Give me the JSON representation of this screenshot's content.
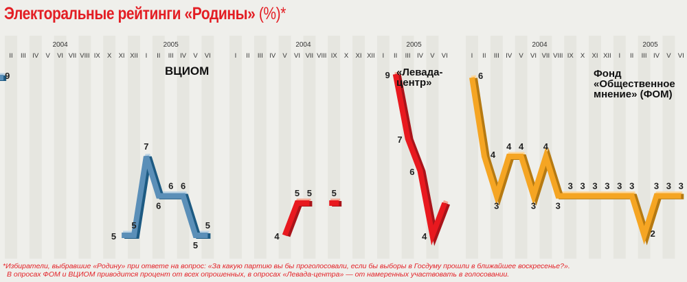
{
  "title": "Электоральные рейтинги «Родины»",
  "title_suffix": "(%)*",
  "footnote_1": "*Избиратели, выбравшие «Родину» при ответе на вопрос: «За какую партию вы бы проголосовали, если бы выборы в Госдуму прошли в ближайшее воскресенье?».",
  "footnote_2": "В опросах ФОМ и ВЦИОМ приводится процент от всех опрошенных, в опросах «Левада-центра» — от намеренных участвовать в голосовании.",
  "chart_data": [
    {
      "type": "line",
      "title": "ВЦИОМ",
      "years": [
        {
          "label": "2004",
          "month_index": 4
        },
        {
          "label": "2005",
          "month_index": 13
        }
      ],
      "months": [
        "II",
        "III",
        "IV",
        "V",
        "VI",
        "VII",
        "VIII",
        "IX",
        "X",
        "XI",
        "XII",
        "I",
        "II",
        "III",
        "IV",
        "V",
        "VI"
      ],
      "points": [
        {
          "i": -1,
          "value": 9,
          "label": "9",
          "pos": "right"
        },
        {
          "i": 9,
          "value": 5,
          "label": "5",
          "pos": "left"
        },
        {
          "i": 10,
          "value": 5,
          "label": "5",
          "pos": "above"
        },
        {
          "i": 11,
          "value": 7,
          "label": "7",
          "pos": "above"
        },
        {
          "i": 12,
          "value": 6,
          "label": "6",
          "pos": "below"
        },
        {
          "i": 13,
          "value": 6,
          "label": "6",
          "pos": "above"
        },
        {
          "i": 14,
          "value": 6,
          "label": "6",
          "pos": "above"
        },
        {
          "i": 15,
          "value": 5,
          "label": "5",
          "pos": "below"
        },
        {
          "i": 16,
          "value": 5,
          "label": "5",
          "pos": "above"
        }
      ],
      "segments": [
        [
          -1,
          -1
        ],
        [
          9,
          16
        ]
      ],
      "colors": {
        "main": "#5b8fb8",
        "dark": "#1d5a82",
        "top": "#bdd3e3"
      }
    },
    {
      "type": "line",
      "title": "«Левада-центр»",
      "years": [
        {
          "label": "2004",
          "month_index": 5.5
        },
        {
          "label": "2005",
          "month_index": 14.5
        }
      ],
      "months": [
        "I",
        "II",
        "III",
        "IV",
        "V",
        "VI",
        "VII",
        "VIII",
        "IX",
        "X",
        "XI",
        "XII",
        "I",
        "II",
        "III",
        "IV",
        "V",
        "VI"
      ],
      "points": [
        {
          "i": 4,
          "value": 4,
          "label": "4",
          "pos": "left"
        },
        {
          "i": 5,
          "value": 5,
          "label": "5",
          "pos": "above"
        },
        {
          "i": 6,
          "value": 5,
          "label": "5",
          "pos": "above"
        },
        {
          "i": 8,
          "value": 5,
          "label": "5",
          "pos": "above"
        },
        {
          "i": 13,
          "value": 9,
          "label": "9",
          "pos": "left"
        },
        {
          "i": 14,
          "value": 7,
          "label": "7",
          "pos": "left"
        },
        {
          "i": 15,
          "value": 6,
          "label": "6",
          "pos": "left"
        },
        {
          "i": 16,
          "value": 4,
          "label": "4",
          "pos": "left"
        },
        {
          "i": 17,
          "value": 5,
          "label": "",
          "pos": "above"
        }
      ],
      "segments": [
        [
          4,
          6
        ],
        [
          8,
          8
        ],
        [
          13,
          17
        ]
      ],
      "colors": {
        "main": "#e8191f",
        "dark": "#a9141a",
        "top": "#f5a592"
      }
    },
    {
      "type": "line",
      "title": "Фонд «Общественное мнение» (ФОМ)",
      "years": [
        {
          "label": "2004",
          "month_index": 5.5
        },
        {
          "label": "2005",
          "month_index": 14.5
        }
      ],
      "months": [
        "I",
        "II",
        "III",
        "IV",
        "V",
        "VI",
        "VII",
        "VIII",
        "IX",
        "X",
        "XI",
        "XII",
        "I",
        "II",
        "III",
        "IV",
        "V",
        "VI"
      ],
      "points": [
        {
          "i": 0,
          "value": 6,
          "label": "6",
          "pos": "right"
        },
        {
          "i": 1,
          "value": 4,
          "label": "4",
          "pos": "right"
        },
        {
          "i": 2,
          "value": 3,
          "label": "3",
          "pos": "below"
        },
        {
          "i": 3,
          "value": 4,
          "label": "4",
          "pos": "above"
        },
        {
          "i": 4,
          "value": 4,
          "label": "4",
          "pos": "above"
        },
        {
          "i": 5,
          "value": 3,
          "label": "3",
          "pos": "below"
        },
        {
          "i": 6,
          "value": 4,
          "label": "4",
          "pos": "above"
        },
        {
          "i": 7,
          "value": 3,
          "label": "3",
          "pos": "below"
        },
        {
          "i": 8,
          "value": 3,
          "label": "3",
          "pos": "above"
        },
        {
          "i": 9,
          "value": 3,
          "label": "3",
          "pos": "above"
        },
        {
          "i": 10,
          "value": 3,
          "label": "3",
          "pos": "above"
        },
        {
          "i": 11,
          "value": 3,
          "label": "3",
          "pos": "above"
        },
        {
          "i": 12,
          "value": 3,
          "label": "3",
          "pos": "above"
        },
        {
          "i": 13,
          "value": 3,
          "label": "3",
          "pos": "above"
        },
        {
          "i": 14,
          "value": 2,
          "label": "2",
          "pos": "right"
        },
        {
          "i": 15,
          "value": 3,
          "label": "3",
          "pos": "above"
        },
        {
          "i": 16,
          "value": 3,
          "label": "3",
          "pos": "above"
        },
        {
          "i": 17,
          "value": 3,
          "label": "3",
          "pos": "above"
        }
      ],
      "segments": [
        [
          0,
          17
        ]
      ],
      "colors": {
        "main": "#f5a523",
        "dark": "#b67a12",
        "top": "#fcd79c"
      }
    }
  ]
}
